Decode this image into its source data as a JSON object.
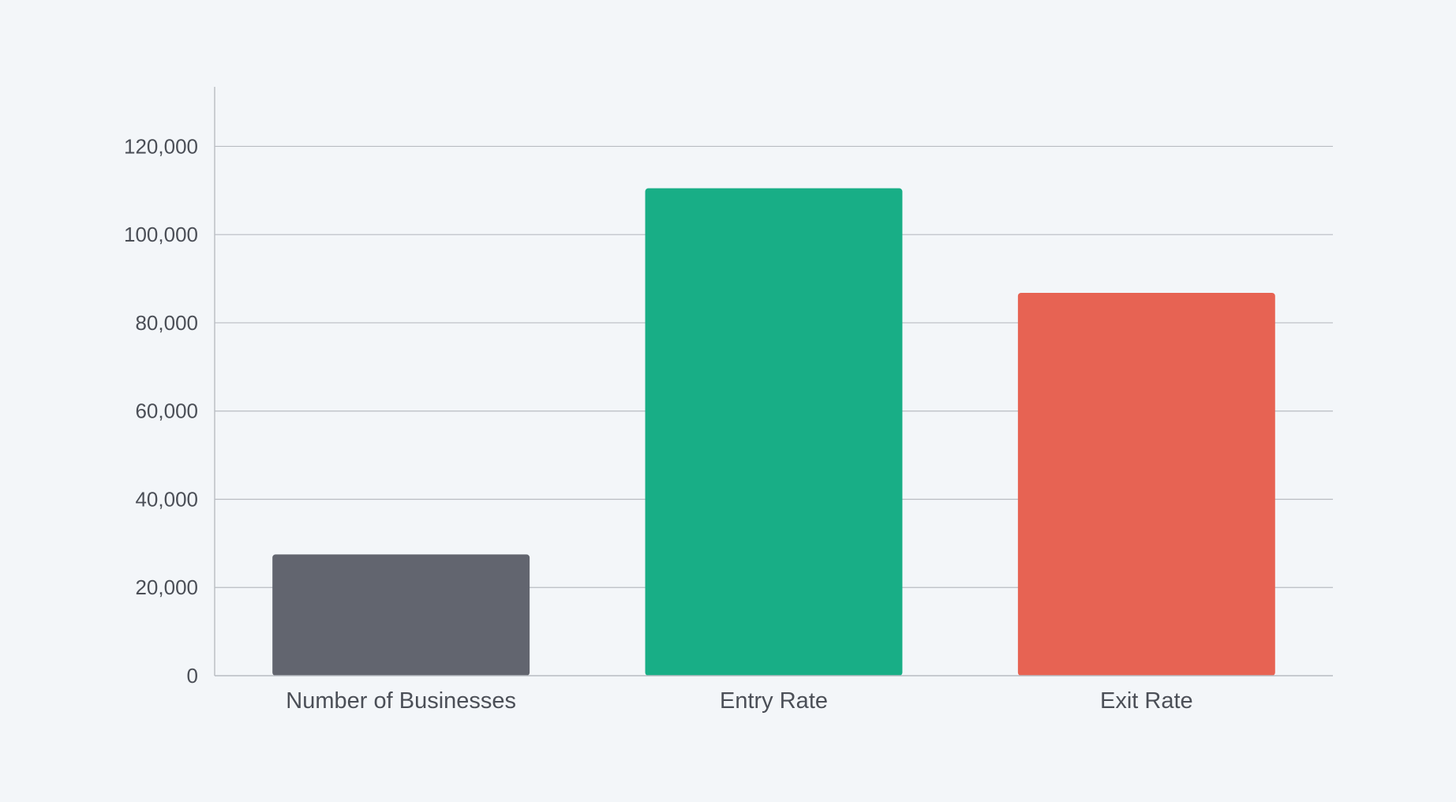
{
  "chart_data": {
    "type": "bar",
    "categories": [
      "Number of Businesses",
      "Entry Rate",
      "Exit Rate"
    ],
    "values": [
      27500,
      110500,
      86800
    ],
    "colors": [
      "#62656f",
      "#18ae86",
      "#e76353"
    ],
    "ylim": [
      0,
      133500
    ],
    "yticks": [
      0,
      20000,
      40000,
      60000,
      80000,
      100000,
      120000
    ],
    "ytick_labels": [
      "0",
      "20,000",
      "40,000",
      "60,000",
      "80,000",
      "100,000",
      "120,000"
    ],
    "grid": true,
    "legend": "none",
    "title": "",
    "xlabel": "",
    "ylabel": ""
  }
}
